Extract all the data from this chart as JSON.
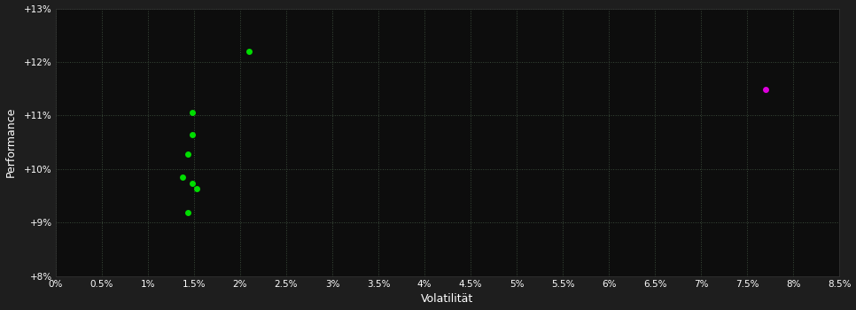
{
  "background_color": "#1e1e1e",
  "plot_bg_color": "#0d0d0d",
  "grid_color": "#3a4a3a",
  "text_color": "#ffffff",
  "xlabel": "Volatilität",
  "ylabel": "Performance",
  "xlim": [
    0.0,
    0.085
  ],
  "ylim": [
    0.08,
    0.13
  ],
  "xtick_values": [
    0.0,
    0.005,
    0.01,
    0.015,
    0.02,
    0.025,
    0.03,
    0.035,
    0.04,
    0.045,
    0.05,
    0.055,
    0.06,
    0.065,
    0.07,
    0.075,
    0.08,
    0.085
  ],
  "xtick_labels": [
    "0%",
    "0.5%",
    "1%",
    "1.5%",
    "2%",
    "2.5%",
    "3%",
    "3.5%",
    "4%",
    "4.5%",
    "5%",
    "5.5%",
    "6%",
    "6.5%",
    "7%",
    "7.5%",
    "8%",
    "8.5%"
  ],
  "ytick_values": [
    0.08,
    0.09,
    0.1,
    0.11,
    0.12,
    0.13
  ],
  "ytick_labels": [
    "+8%",
    "+9%",
    "+10%",
    "+11%",
    "+12%",
    "+13%"
  ],
  "green_points": [
    [
      0.021,
      0.122
    ],
    [
      0.0148,
      0.1105
    ],
    [
      0.0148,
      0.1065
    ],
    [
      0.0143,
      0.1028
    ],
    [
      0.0138,
      0.0985
    ],
    [
      0.0148,
      0.0973
    ],
    [
      0.0153,
      0.0963
    ],
    [
      0.0143,
      0.0918
    ]
  ],
  "magenta_points": [
    [
      0.077,
      0.1148
    ]
  ],
  "green_color": "#00dd00",
  "magenta_color": "#dd00dd",
  "marker_size": 5
}
